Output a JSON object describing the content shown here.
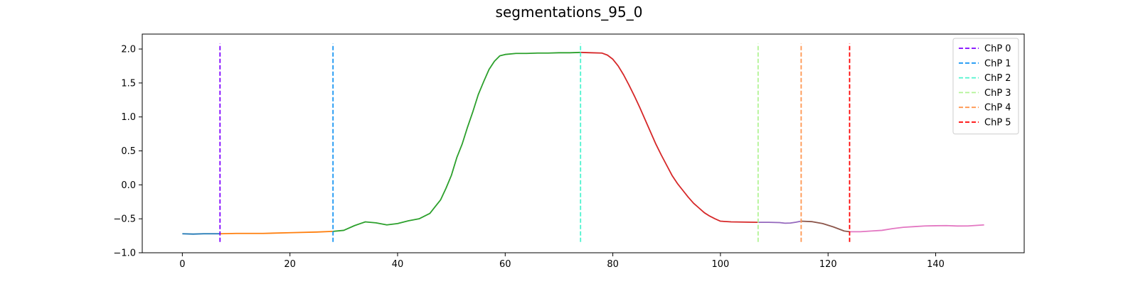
{
  "chart_data": {
    "type": "line",
    "title": "segmentations_95_0",
    "xlabel": "",
    "ylabel": "",
    "xlim": [
      -7.45,
      156.45
    ],
    "ylim": [
      -1.0,
      2.22
    ],
    "xticks": [
      0,
      20,
      40,
      60,
      80,
      100,
      120,
      140
    ],
    "yticks": [
      -1.0,
      -0.5,
      0.0,
      0.5,
      1.0,
      1.5,
      2.0
    ],
    "grid": false,
    "legend": {
      "position": "top-right",
      "entries": [
        {
          "label": "ChP 0",
          "color": "#7f00ff"
        },
        {
          "label": "ChP 1",
          "color": "#1996f3"
        },
        {
          "label": "ChP 2",
          "color": "#4df3ce"
        },
        {
          "label": "ChP 3",
          "color": "#b2f396"
        },
        {
          "label": "ChP 4",
          "color": "#ff964f"
        },
        {
          "label": "ChP 5",
          "color": "#ff0000"
        }
      ]
    },
    "changepoints": [
      {
        "name": "ChP 0",
        "x": 7,
        "color": "#7f00ff"
      },
      {
        "name": "ChP 1",
        "x": 28,
        "color": "#1996f3"
      },
      {
        "name": "ChP 2",
        "x": 74,
        "color": "#4df3ce"
      },
      {
        "name": "ChP 3",
        "x": 107,
        "color": "#b2f396"
      },
      {
        "name": "ChP 4",
        "x": 115,
        "color": "#ff964f"
      },
      {
        "name": "ChP 5",
        "x": 124,
        "color": "#ff0000"
      }
    ],
    "changepoint_span": [
      -0.84,
      2.08
    ],
    "segments": [
      {
        "color": "#1f77b4",
        "points": [
          [
            0,
            -0.72
          ],
          [
            2,
            -0.725
          ],
          [
            4,
            -0.72
          ],
          [
            6,
            -0.72
          ],
          [
            7,
            -0.72
          ]
        ]
      },
      {
        "color": "#ff7f0e",
        "points": [
          [
            7,
            -0.72
          ],
          [
            10,
            -0.715
          ],
          [
            15,
            -0.715
          ],
          [
            20,
            -0.705
          ],
          [
            25,
            -0.695
          ],
          [
            28,
            -0.685
          ]
        ]
      },
      {
        "color": "#2ca02c",
        "points": [
          [
            28,
            -0.685
          ],
          [
            30,
            -0.67
          ],
          [
            32,
            -0.6
          ],
          [
            34,
            -0.545
          ],
          [
            36,
            -0.56
          ],
          [
            38,
            -0.59
          ],
          [
            40,
            -0.57
          ],
          [
            42,
            -0.53
          ],
          [
            44,
            -0.5
          ],
          [
            46,
            -0.42
          ],
          [
            47,
            -0.32
          ],
          [
            48,
            -0.22
          ],
          [
            49,
            -0.05
          ],
          [
            50,
            0.14
          ],
          [
            51,
            0.4
          ],
          [
            52,
            0.6
          ],
          [
            53,
            0.85
          ],
          [
            54,
            1.08
          ],
          [
            55,
            1.33
          ],
          [
            56,
            1.52
          ],
          [
            57,
            1.7
          ],
          [
            58,
            1.82
          ],
          [
            59,
            1.9
          ],
          [
            60,
            1.92
          ],
          [
            62,
            1.935
          ],
          [
            64,
            1.935
          ],
          [
            66,
            1.94
          ],
          [
            68,
            1.94
          ],
          [
            70,
            1.945
          ],
          [
            72,
            1.945
          ],
          [
            74,
            1.95
          ]
        ]
      },
      {
        "color": "#d62728",
        "points": [
          [
            74,
            1.95
          ],
          [
            76,
            1.945
          ],
          [
            78,
            1.94
          ],
          [
            79,
            1.91
          ],
          [
            80,
            1.85
          ],
          [
            81,
            1.75
          ],
          [
            82,
            1.62
          ],
          [
            83,
            1.47
          ],
          [
            84,
            1.31
          ],
          [
            85,
            1.14
          ],
          [
            86,
            0.96
          ],
          [
            87,
            0.78
          ],
          [
            88,
            0.6
          ],
          [
            89,
            0.44
          ],
          [
            90,
            0.29
          ],
          [
            91,
            0.14
          ],
          [
            92,
            0.02
          ],
          [
            93,
            -0.08
          ],
          [
            94,
            -0.18
          ],
          [
            95,
            -0.27
          ],
          [
            96,
            -0.34
          ],
          [
            97,
            -0.41
          ],
          [
            98,
            -0.46
          ],
          [
            99,
            -0.5
          ],
          [
            100,
            -0.535
          ],
          [
            102,
            -0.545
          ],
          [
            104,
            -0.548
          ],
          [
            107,
            -0.552
          ]
        ]
      },
      {
        "color": "#9467bd",
        "points": [
          [
            107,
            -0.552
          ],
          [
            109,
            -0.552
          ],
          [
            111,
            -0.556
          ],
          [
            112,
            -0.565
          ],
          [
            113,
            -0.562
          ],
          [
            114,
            -0.55
          ],
          [
            115,
            -0.535
          ]
        ]
      },
      {
        "color": "#8c564b",
        "points": [
          [
            115,
            -0.535
          ],
          [
            117,
            -0.542
          ],
          [
            119,
            -0.57
          ],
          [
            121,
            -0.62
          ],
          [
            123,
            -0.68
          ],
          [
            124,
            -0.69
          ]
        ]
      },
      {
        "color": "#e377c2",
        "points": [
          [
            124,
            -0.69
          ],
          [
            126,
            -0.69
          ],
          [
            128,
            -0.68
          ],
          [
            130,
            -0.67
          ],
          [
            132,
            -0.645
          ],
          [
            134,
            -0.625
          ],
          [
            136,
            -0.615
          ],
          [
            138,
            -0.605
          ],
          [
            140,
            -0.602
          ],
          [
            142,
            -0.6
          ],
          [
            144,
            -0.606
          ],
          [
            146,
            -0.605
          ],
          [
            148,
            -0.595
          ],
          [
            149,
            -0.59
          ]
        ]
      }
    ]
  }
}
